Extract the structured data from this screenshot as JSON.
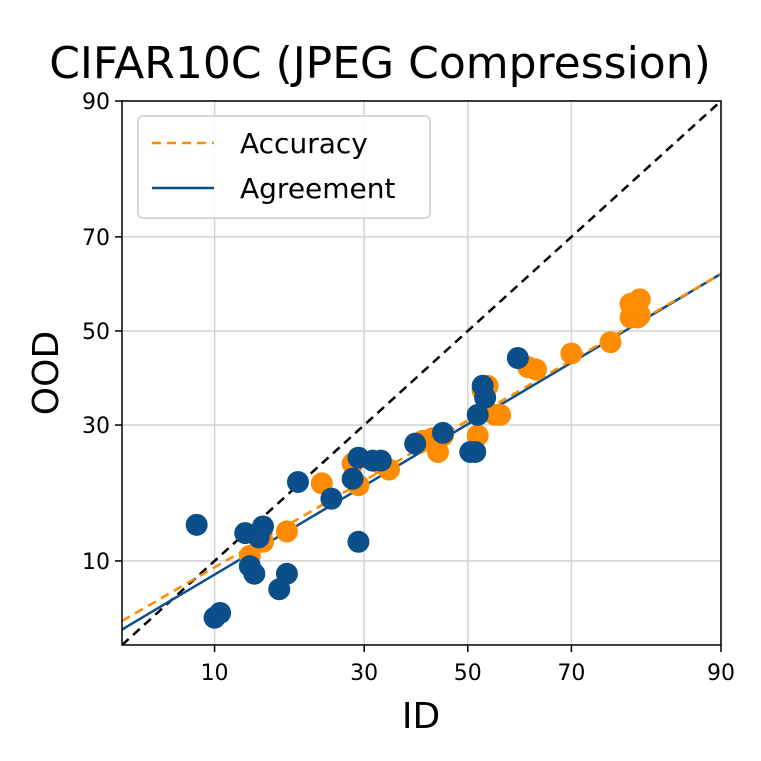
{
  "chart_data": {
    "type": "scatter",
    "title": "CIFAR10C (JPEG Compression)",
    "xlabel": "ID",
    "ylabel": "OOD",
    "xlim": [
      4,
      90
    ],
    "ylim": [
      4,
      90
    ],
    "scale": "probit",
    "xticks": [
      "10",
      "30",
      "50",
      "70",
      "90"
    ],
    "yticks": [
      "10",
      "30",
      "50",
      "70",
      "90"
    ],
    "grid": true,
    "legend_position": "top-left",
    "series": [
      {
        "name": "Accuracy",
        "kind": "points+fit",
        "color": "#ff8c00",
        "line_style": "dashed",
        "fit": {
          "x": [
            4,
            90
          ],
          "y": [
            5.3,
            62.5
          ]
        },
        "points": [
          [
            13.5,
            10.5
          ],
          [
            15.0,
            12.0
          ],
          [
            18.0,
            13.2
          ],
          [
            23.0,
            19.8
          ],
          [
            28.0,
            23.0
          ],
          [
            29.0,
            19.5
          ],
          [
            33.0,
            23.0
          ],
          [
            34.5,
            22.0
          ],
          [
            40.0,
            26.5
          ],
          [
            41.0,
            27.0
          ],
          [
            43.0,
            27.5
          ],
          [
            44.0,
            25.0
          ],
          [
            45.0,
            28.0
          ],
          [
            52.0,
            28.0
          ],
          [
            53.0,
            37.0
          ],
          [
            54.0,
            38.0
          ],
          [
            55.5,
            32.0
          ],
          [
            56.5,
            32.0
          ],
          [
            62.0,
            42.0
          ],
          [
            63.5,
            41.5
          ],
          [
            70.0,
            45.0
          ],
          [
            76.5,
            47.5
          ],
          [
            79.5,
            53.0
          ],
          [
            80.5,
            53.0
          ],
          [
            79.5,
            56.0
          ],
          [
            80.5,
            56.5
          ],
          [
            80.8,
            53.5
          ],
          [
            80.8,
            57.0
          ]
        ]
      },
      {
        "name": "Agreement",
        "kind": "points+fit",
        "color": "#0b4f8a",
        "line_style": "solid",
        "fit": {
          "x": [
            4,
            90
          ],
          "y": [
            4.8,
            62.5
          ]
        },
        "points": [
          [
            8.5,
            14.0
          ],
          [
            10.0,
            5.5
          ],
          [
            10.5,
            5.8
          ],
          [
            13.0,
            13.0
          ],
          [
            13.5,
            9.5
          ],
          [
            14.0,
            8.8
          ],
          [
            14.5,
            12.5
          ],
          [
            15.0,
            13.8
          ],
          [
            17.0,
            7.5
          ],
          [
            18.0,
            8.8
          ],
          [
            19.5,
            20.0
          ],
          [
            24.5,
            17.5
          ],
          [
            28.0,
            20.5
          ],
          [
            29.0,
            12.0
          ],
          [
            29.0,
            24.0
          ],
          [
            31.5,
            23.5
          ],
          [
            33.0,
            23.5
          ],
          [
            39.5,
            26.5
          ],
          [
            45.0,
            28.5
          ],
          [
            50.5,
            25.0
          ],
          [
            51.5,
            25.0
          ],
          [
            52.0,
            32.0
          ],
          [
            53.0,
            38.0
          ],
          [
            53.5,
            35.5
          ],
          [
            60.0,
            44.0
          ]
        ]
      }
    ],
    "reference_line": {
      "style": "dashed",
      "color": "#000000",
      "x": [
        4,
        90
      ],
      "y": [
        4,
        90
      ]
    }
  }
}
